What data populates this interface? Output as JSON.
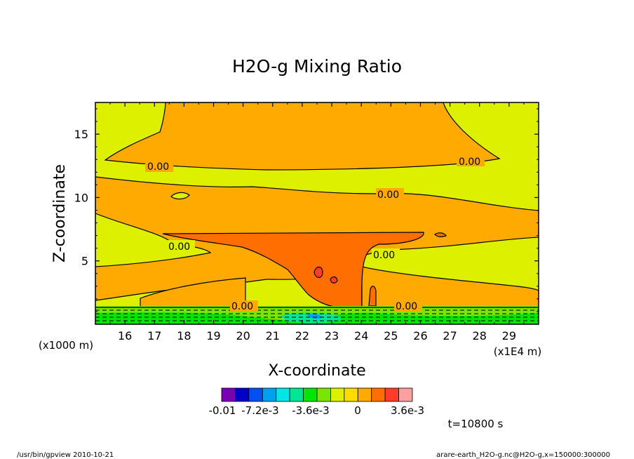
{
  "chart_data": {
    "type": "contour",
    "title": "H2O-g Mixing Ratio",
    "xlabel": "X-coordinate",
    "ylabel": "Z-coordinate",
    "x_units_label": "(x1E4 m)",
    "y_units_label": "(x1000 m)",
    "x_ticks": [
      "16",
      "17",
      "18",
      "19",
      "20",
      "21",
      "22",
      "23",
      "24",
      "25",
      "26",
      "27",
      "28",
      "29"
    ],
    "y_ticks": [
      "5",
      "10",
      "15"
    ],
    "xlim": [
      15,
      30
    ],
    "ylim": [
      0,
      17.5
    ],
    "contour_label": "0.00",
    "colorbar": {
      "colors": [
        "#7a00b4",
        "#0000c8",
        "#0050f0",
        "#00a0f0",
        "#00e6e6",
        "#00e696",
        "#00e600",
        "#78e600",
        "#dcf000",
        "#ffdc00",
        "#ffaa00",
        "#ff6e00",
        "#ff3c28",
        "#ffa0a0"
      ],
      "tick_labels": [
        "-0.01",
        "-7.2e-3",
        "-3.6e-3",
        "0",
        "3.6e-3"
      ]
    },
    "time_label": "t=10800 s"
  },
  "footer": {
    "left": "/usr/bin/gpview   2010-10-21",
    "right": "arare-earth_H2O-g.nc@H2O-g,x=150000:300000"
  }
}
